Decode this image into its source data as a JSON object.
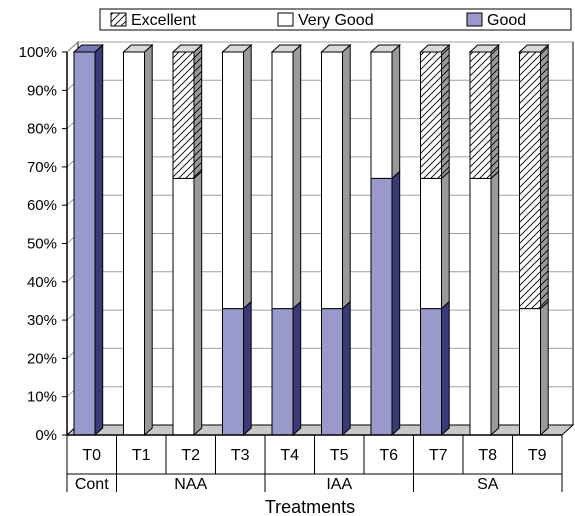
{
  "chart_data": {
    "type": "bar",
    "stacked": true,
    "three_d": true,
    "categories": [
      "T0",
      "T1",
      "T2",
      "T3",
      "T4",
      "T5",
      "T6",
      "T7",
      "T8",
      "T9"
    ],
    "groups": [
      {
        "label": "Cont",
        "start": 0,
        "end": 0
      },
      {
        "label": "NAA",
        "start": 1,
        "end": 3
      },
      {
        "label": "IAA",
        "start": 4,
        "end": 6
      },
      {
        "label": "SA",
        "start": 7,
        "end": 9
      }
    ],
    "series": [
      {
        "name": "Good",
        "values": [
          100,
          0,
          0,
          33,
          33,
          33,
          67,
          33,
          0,
          0
        ]
      },
      {
        "name": "Very Good",
        "values": [
          0,
          100,
          67,
          67,
          67,
          67,
          33,
          34,
          67,
          33
        ]
      },
      {
        "name": "Excellent",
        "values": [
          0,
          0,
          33,
          0,
          0,
          0,
          0,
          33,
          33,
          67
        ]
      }
    ],
    "legend_order": [
      "Excellent",
      "Very Good",
      "Good"
    ],
    "xlabel": "Treatments",
    "ylabel": "",
    "ylim": [
      0,
      100
    ],
    "yticks": [
      "0%",
      "10%",
      "20%",
      "30%",
      "40%",
      "50%",
      "60%",
      "70%",
      "80%",
      "90%",
      "100%"
    ],
    "grid": true,
    "legend_position": "top",
    "colors": {
      "Good": "#9999cc",
      "Very Good": "#ffffff",
      "Excellent": "#ffffff"
    }
  }
}
